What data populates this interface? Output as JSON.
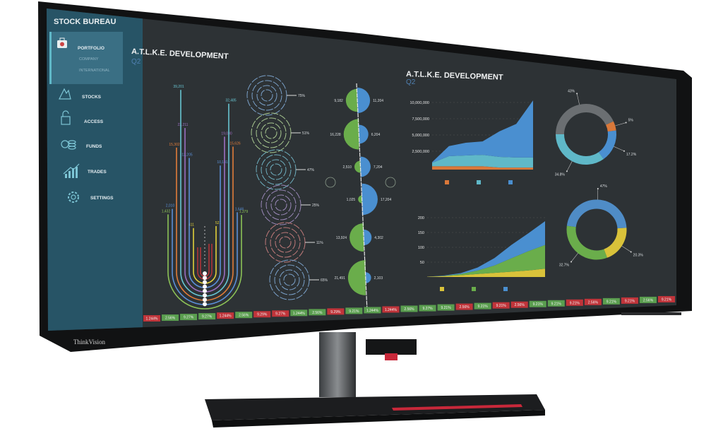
{
  "app": {
    "title": "STOCK BUREAU"
  },
  "sidebar": {
    "portfolio": {
      "label": "PORTFOLIO",
      "sub": [
        "COMPANY",
        "INTERNATIONAL"
      ]
    },
    "items": [
      {
        "label": "STOCKS",
        "icon": "mountain-icon"
      },
      {
        "label": "ACCESS",
        "icon": "lock-icon"
      },
      {
        "label": "FUNDS",
        "icon": "coins-icon"
      },
      {
        "label": "TRADES",
        "icon": "chart-up-icon"
      },
      {
        "label": "SETTINGS",
        "icon": "gear-icon"
      }
    ]
  },
  "main": {
    "left_title": "A.T.L.K.E. DEVELOPMENT",
    "left_subtitle": "Q2",
    "right_title": "A.T.L.K.E. DEVELOPMENT",
    "right_subtitle": "Q2"
  },
  "colors": {
    "screen": "#2d3235",
    "sidebar": "#275466",
    "up": "#5a9e4f",
    "down": "#c0343a",
    "blue": "#4a8fd0",
    "green": "#6aad4b",
    "orange": "#d9783a",
    "teal": "#5fb8c8",
    "yellow": "#d9c23a",
    "purple": "#9066b5",
    "gray": "#6b6f72"
  },
  "chart_data": [
    {
      "type": "radial-bar",
      "series": [
        {
          "left": "411",
          "right": "521",
          "color": "#e0cf3a"
        },
        {
          "left": "12,205",
          "right": "10,141",
          "color": "#5b8fd6"
        },
        {
          "left": "22,211",
          "right": "19,000",
          "color": "#9b6fc0"
        },
        {
          "left": "39,201",
          "right": "32,485",
          "color": "#68c5d2"
        },
        {
          "left": "15,302",
          "right": "15,626",
          "color": "#e07c3a"
        },
        {
          "left": "2,010",
          "right": "1,646",
          "color": "#5b8fd6"
        },
        {
          "left": "1,432",
          "right": "1,379",
          "color": "#8cc257"
        }
      ],
      "values_left": [
        411,
        12205,
        22211,
        39201,
        15302,
        2010,
        1432
      ],
      "values_right": [
        521,
        10141,
        19000,
        32485,
        15626,
        1646,
        1379
      ]
    },
    {
      "type": "concentric-gauge",
      "values": [
        "75%",
        "51%",
        "47%",
        "25%",
        "11%",
        "65%"
      ],
      "colors": [
        "#7aa0c8",
        "#a8c890",
        "#6fb0c0",
        "#9a88b8",
        "#c07a7a",
        "#7aa0c8"
      ]
    },
    {
      "type": "split-semicircle",
      "left": [
        9182,
        16228,
        2510,
        1025,
        13924,
        21491
      ],
      "left_labels": [
        "9,182",
        "16,228",
        "2,510",
        "1,025",
        "13,924",
        "21,491"
      ],
      "right": [
        11204,
        6204,
        7204,
        17204,
        4302,
        2103
      ],
      "right_labels": [
        "11,204",
        "6,204",
        "7,204",
        "17,204",
        "4,302",
        "2,103"
      ]
    },
    {
      "type": "area",
      "stacked": true,
      "yticks": [
        "10,000,000",
        "7,500,000",
        "5,000,000",
        "2,500,000"
      ],
      "ylim": [
        0,
        10000000
      ],
      "grid": true,
      "legend": "bottom",
      "series": [
        {
          "color": "#d9783a",
          "values": [
            500000,
            500000,
            500000,
            500000,
            300000,
            300000,
            300000
          ]
        },
        {
          "color": "#5fb8c8",
          "values": [
            500000,
            1500000,
            1600000,
            1700000,
            1600000,
            1500000,
            1500000
          ]
        },
        {
          "color": "#4a8fd0",
          "values": [
            100000,
            1500000,
            1900000,
            2000000,
            3800000,
            5000000,
            8500000
          ]
        }
      ]
    },
    {
      "type": "area",
      "stacked": true,
      "yticks": [
        "200",
        "150",
        "100",
        "50"
      ],
      "ylim": [
        0,
        200
      ],
      "grid": true,
      "legend": "bottom",
      "series": [
        {
          "color": "#d9c23a",
          "values": [
            1,
            3,
            6,
            10,
            14,
            18,
            22,
            28
          ]
        },
        {
          "color": "#6aad4b",
          "values": [
            0,
            1,
            4,
            12,
            25,
            45,
            65,
            80
          ]
        },
        {
          "color": "#4a8fd0",
          "values": [
            0,
            1,
            3,
            10,
            25,
            45,
            60,
            80
          ]
        }
      ]
    },
    {
      "type": "pie",
      "donut": true,
      "slices": [
        {
          "label": "43%",
          "value": 43,
          "color": "#6b6f72"
        },
        {
          "label": "5%",
          "value": 5,
          "color": "#d9783a"
        },
        {
          "label": "17.2%",
          "value": 17.2,
          "color": "#4a8fd0"
        },
        {
          "label": "34.8%",
          "value": 34.8,
          "color": "#5fb8c8"
        }
      ]
    },
    {
      "type": "pie",
      "donut": true,
      "slices": [
        {
          "label": "47%",
          "value": 47,
          "color": "#4f8cc6"
        },
        {
          "label": "20.3%",
          "value": 20.3,
          "color": "#d9c23a"
        },
        {
          "label": "32.7%",
          "value": 32.7,
          "color": "#6aad4b"
        }
      ]
    }
  ],
  "ticker": [
    {
      "text": "1.244%",
      "up": false
    },
    {
      "text": "2.56%",
      "up": true
    },
    {
      "text": "9.27%",
      "up": true
    },
    {
      "text": "9.27%",
      "up": true
    },
    {
      "text": "1.244%",
      "up": false
    },
    {
      "text": "2.56%",
      "up": true
    },
    {
      "text": "9.29%",
      "up": false
    },
    {
      "text": "9.27%",
      "up": false
    },
    {
      "text": "1.244%",
      "up": true
    },
    {
      "text": "2.56%",
      "up": true
    },
    {
      "text": "9.29%",
      "up": false
    },
    {
      "text": "9.21%",
      "up": true
    },
    {
      "text": "1.244%",
      "up": true
    },
    {
      "text": "1.244%",
      "up": false
    },
    {
      "text": "2.56%",
      "up": true
    },
    {
      "text": "9.27%",
      "up": true
    },
    {
      "text": "9.21%",
      "up": true
    },
    {
      "text": "2.56%",
      "up": false
    },
    {
      "text": "9.21%",
      "up": true
    },
    {
      "text": "9.21%",
      "up": false
    },
    {
      "text": "2.56%",
      "up": false
    },
    {
      "text": "9.21%",
      "up": true
    },
    {
      "text": "9.21%",
      "up": true
    },
    {
      "text": "9.21%",
      "up": false
    },
    {
      "text": "2.56%",
      "up": false
    },
    {
      "text": "9.21%",
      "up": true
    },
    {
      "text": "9.21%",
      "up": false
    },
    {
      "text": "2.56%",
      "up": true
    },
    {
      "text": "9.21%",
      "up": false
    }
  ],
  "monitor": {
    "brand": "ThinkVision"
  }
}
